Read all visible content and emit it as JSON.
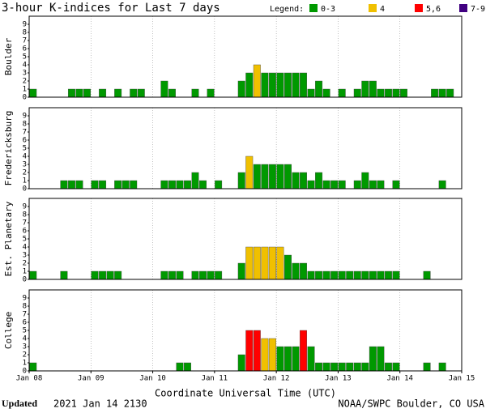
{
  "title": "3-hour K-indices for Last 7 days",
  "legend": {
    "label": "Legend:",
    "items": [
      {
        "label": "0-3",
        "color": "#009900"
      },
      {
        "label": "4",
        "color": "#f0c000"
      },
      {
        "label": "5,6",
        "color": "#ff0000"
      },
      {
        "label": "7-9",
        "color": "#400080"
      }
    ]
  },
  "x_axis": {
    "label": "Coordinate Universal Time (UTC)",
    "tick_labels": [
      "Jan 08",
      "Jan 09",
      "Jan 10",
      "Jan 11",
      "Jan 12",
      "Jan 13",
      "Jan 14",
      "Jan 15"
    ]
  },
  "footer": {
    "updated_label": "Updated",
    "updated": "2021 Jan 14 2130",
    "source": "NOAA/SWPC Boulder, CO USA"
  },
  "chart_data": [
    {
      "type": "bar",
      "y_label": "Boulder",
      "ylim": [
        0,
        10
      ],
      "yticks": [
        0,
        1,
        2,
        3,
        4,
        5,
        6,
        7,
        8,
        9
      ],
      "grid": true,
      "values": [
        1,
        0,
        0,
        0,
        0,
        1,
        1,
        1,
        0,
        1,
        0,
        1,
        0,
        1,
        1,
        0,
        0,
        2,
        1,
        0,
        0,
        1,
        0,
        1,
        0,
        0,
        0,
        2,
        3,
        4,
        3,
        3,
        3,
        3,
        3,
        3,
        1,
        2,
        1,
        0,
        1,
        0,
        1,
        2,
        2,
        1,
        1,
        1,
        1,
        0,
        0,
        0,
        1,
        1,
        1,
        0
      ]
    },
    {
      "type": "bar",
      "y_label": "Fredericksburg",
      "ylim": [
        0,
        10
      ],
      "yticks": [
        0,
        1,
        2,
        3,
        4,
        5,
        6,
        7,
        8,
        9
      ],
      "grid": true,
      "values": [
        0,
        0,
        0,
        0,
        1,
        1,
        1,
        0,
        1,
        1,
        0,
        1,
        1,
        1,
        0,
        0,
        0,
        1,
        1,
        1,
        1,
        2,
        1,
        0,
        1,
        0,
        0,
        2,
        4,
        3,
        3,
        3,
        3,
        3,
        2,
        2,
        1,
        2,
        1,
        1,
        1,
        0,
        1,
        2,
        1,
        1,
        0,
        1,
        0,
        0,
        0,
        0,
        0,
        1,
        0,
        0
      ]
    },
    {
      "type": "bar",
      "y_label": "Est. Planetary",
      "ylim": [
        0,
        10
      ],
      "yticks": [
        0,
        1,
        2,
        3,
        4,
        5,
        6,
        7,
        8,
        9
      ],
      "grid": true,
      "values": [
        1,
        0,
        0,
        0,
        1,
        0,
        0,
        0,
        1,
        1,
        1,
        1,
        0,
        0,
        0,
        0,
        0,
        1,
        1,
        1,
        0,
        1,
        1,
        1,
        1,
        0,
        0,
        2,
        4,
        4,
        4,
        4,
        4,
        3,
        2,
        2,
        1,
        1,
        1,
        1,
        1,
        1,
        1,
        1,
        1,
        1,
        1,
        1,
        0,
        0,
        0,
        1,
        0,
        0,
        0,
        0
      ]
    },
    {
      "type": "bar",
      "y_label": "College",
      "ylim": [
        0,
        10
      ],
      "yticks": [
        0,
        1,
        2,
        3,
        4,
        5,
        6,
        7,
        8,
        9
      ],
      "grid": true,
      "values": [
        1,
        0,
        0,
        0,
        0,
        0,
        0,
        0,
        0,
        0,
        0,
        0,
        0,
        0,
        0,
        0,
        0,
        0,
        0,
        1,
        1,
        0,
        0,
        0,
        0,
        0,
        0,
        2,
        5,
        5,
        4,
        4,
        3,
        3,
        3,
        5,
        3,
        1,
        1,
        1,
        1,
        1,
        1,
        1,
        3,
        3,
        1,
        1,
        0,
        0,
        0,
        1,
        0,
        1,
        0,
        0
      ]
    }
  ]
}
